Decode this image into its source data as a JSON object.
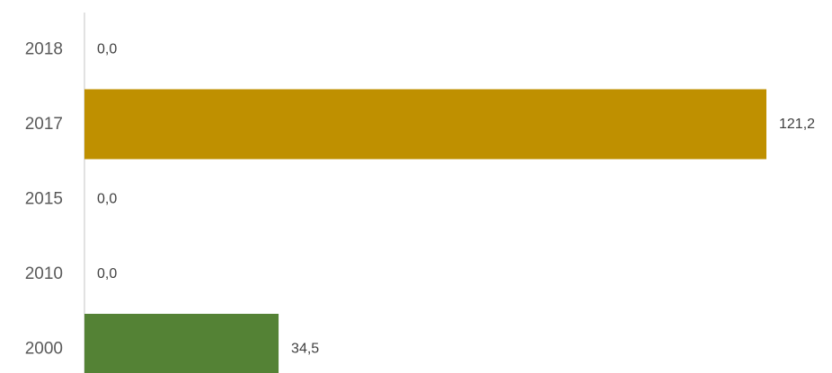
{
  "chart_data": {
    "type": "bar",
    "orientation": "horizontal",
    "categories": [
      "2018",
      "2017",
      "2015",
      "2010",
      "2000"
    ],
    "values": [
      0.0,
      121.2,
      0.0,
      0.0,
      34.5
    ],
    "value_labels": [
      "0,0",
      "121,2",
      "0,0",
      "0,0",
      "34,5"
    ],
    "bar_colors": [
      "#bf9000",
      "#bf9000",
      "#bf9000",
      "#bf9000",
      "#548235"
    ],
    "axis_color": "#d9d9d9",
    "xlim": [
      0,
      121.2
    ],
    "grid": false,
    "legend": false
  }
}
